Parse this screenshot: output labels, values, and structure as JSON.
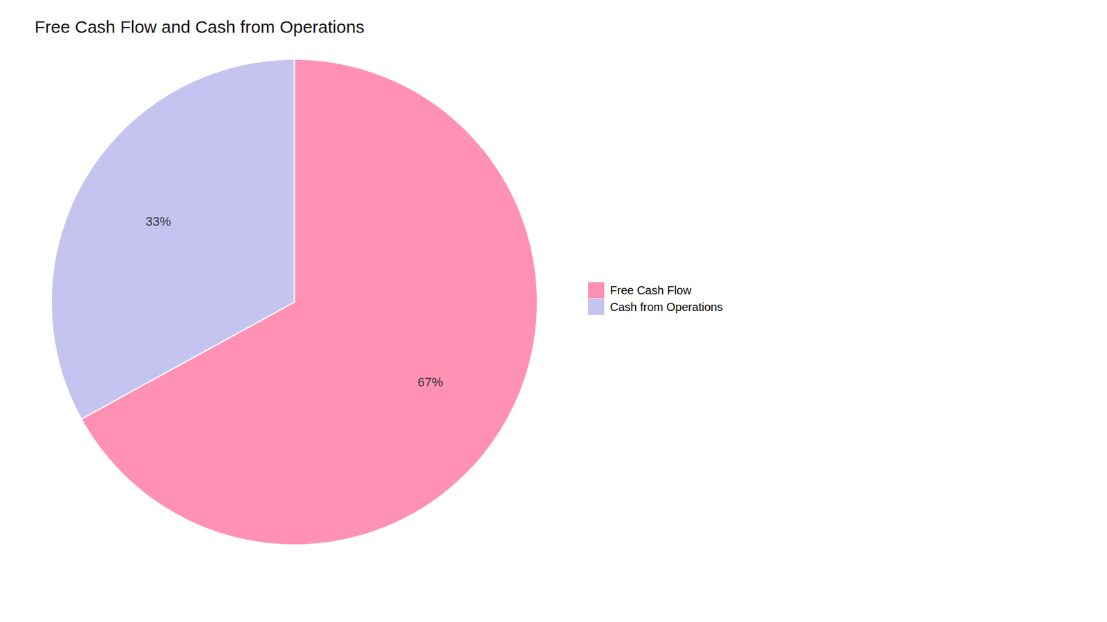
{
  "chart_data": {
    "type": "pie",
    "title": "Free Cash Flow and Cash from Operations",
    "categories": [
      "Free Cash Flow",
      "Cash from Operations"
    ],
    "values": [
      67,
      33
    ],
    "value_labels": [
      "67%",
      "33%"
    ],
    "colors": [
      "#FF91B4",
      "#C5C3F0"
    ],
    "data_labels": true,
    "legend": "right"
  }
}
